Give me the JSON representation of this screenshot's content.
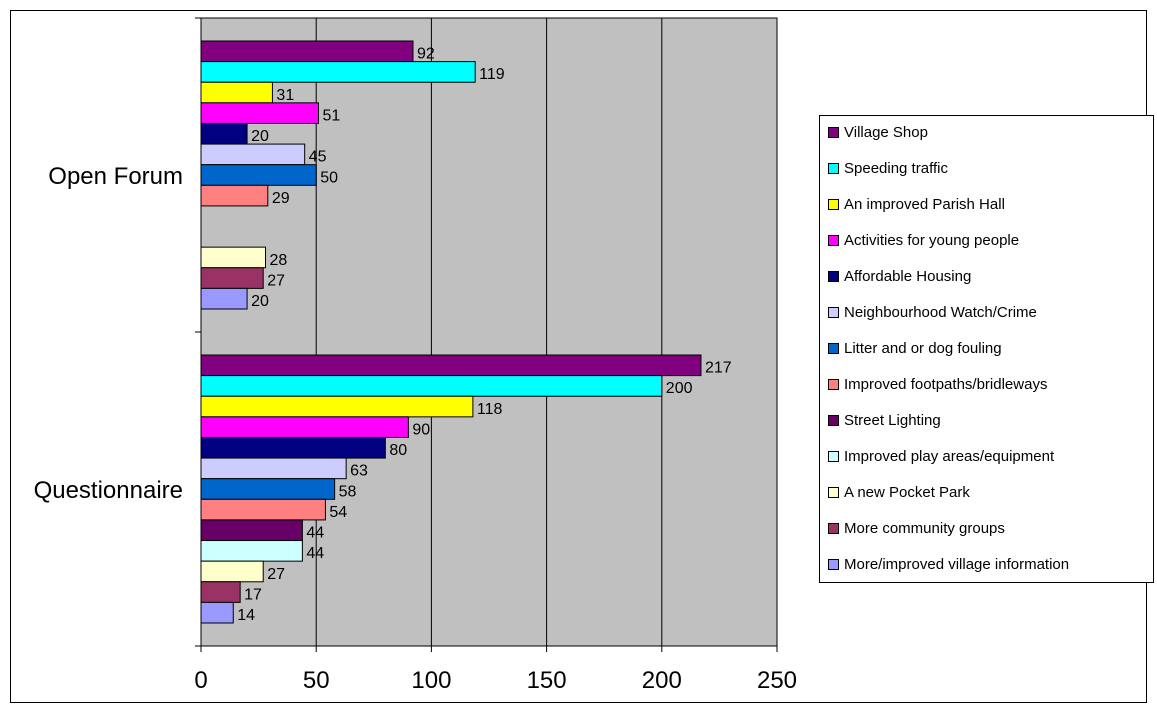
{
  "chart_data": {
    "type": "bar",
    "orientation": "horizontal",
    "categories": [
      "Open Forum",
      "Questionnaire"
    ],
    "xlim": [
      0,
      250
    ],
    "xticks": [
      0,
      50,
      100,
      150,
      200,
      250
    ],
    "grid": true,
    "legend_position": "right",
    "series": [
      {
        "name": "Village Shop",
        "color": "#800080",
        "values": [
          92,
          217
        ]
      },
      {
        "name": "Speeding traffic",
        "color": "#00ffff",
        "values": [
          119,
          200
        ]
      },
      {
        "name": "An improved Parish Hall",
        "color": "#ffff00",
        "values": [
          31,
          118
        ]
      },
      {
        "name": "Activities for young people",
        "color": "#ff00ff",
        "values": [
          51,
          90
        ]
      },
      {
        "name": "Affordable Housing",
        "color": "#000080",
        "values": [
          20,
          80
        ]
      },
      {
        "name": "Neighbourhood Watch/Crime",
        "color": "#ccccff",
        "values": [
          45,
          63
        ]
      },
      {
        "name": "Litter and or dog fouling",
        "color": "#0066cc",
        "values": [
          50,
          58
        ]
      },
      {
        "name": "Improved footpaths/bridleways",
        "color": "#ff8080",
        "values": [
          29,
          54
        ]
      },
      {
        "name": "Street Lighting",
        "color": "#660066",
        "values": [
          null,
          44
        ]
      },
      {
        "name": "Improved play areas/equipment",
        "color": "#ccffff",
        "values": [
          null,
          44
        ]
      },
      {
        "name": "A new Pocket Park",
        "color": "#ffffcc",
        "values": [
          28,
          27
        ]
      },
      {
        "name": "More community groups",
        "color": "#993366",
        "values": [
          27,
          17
        ]
      },
      {
        "name": "More/improved village information",
        "color": "#9999ff",
        "values": [
          20,
          14
        ]
      }
    ],
    "plot_background": "#c0c0c0"
  }
}
